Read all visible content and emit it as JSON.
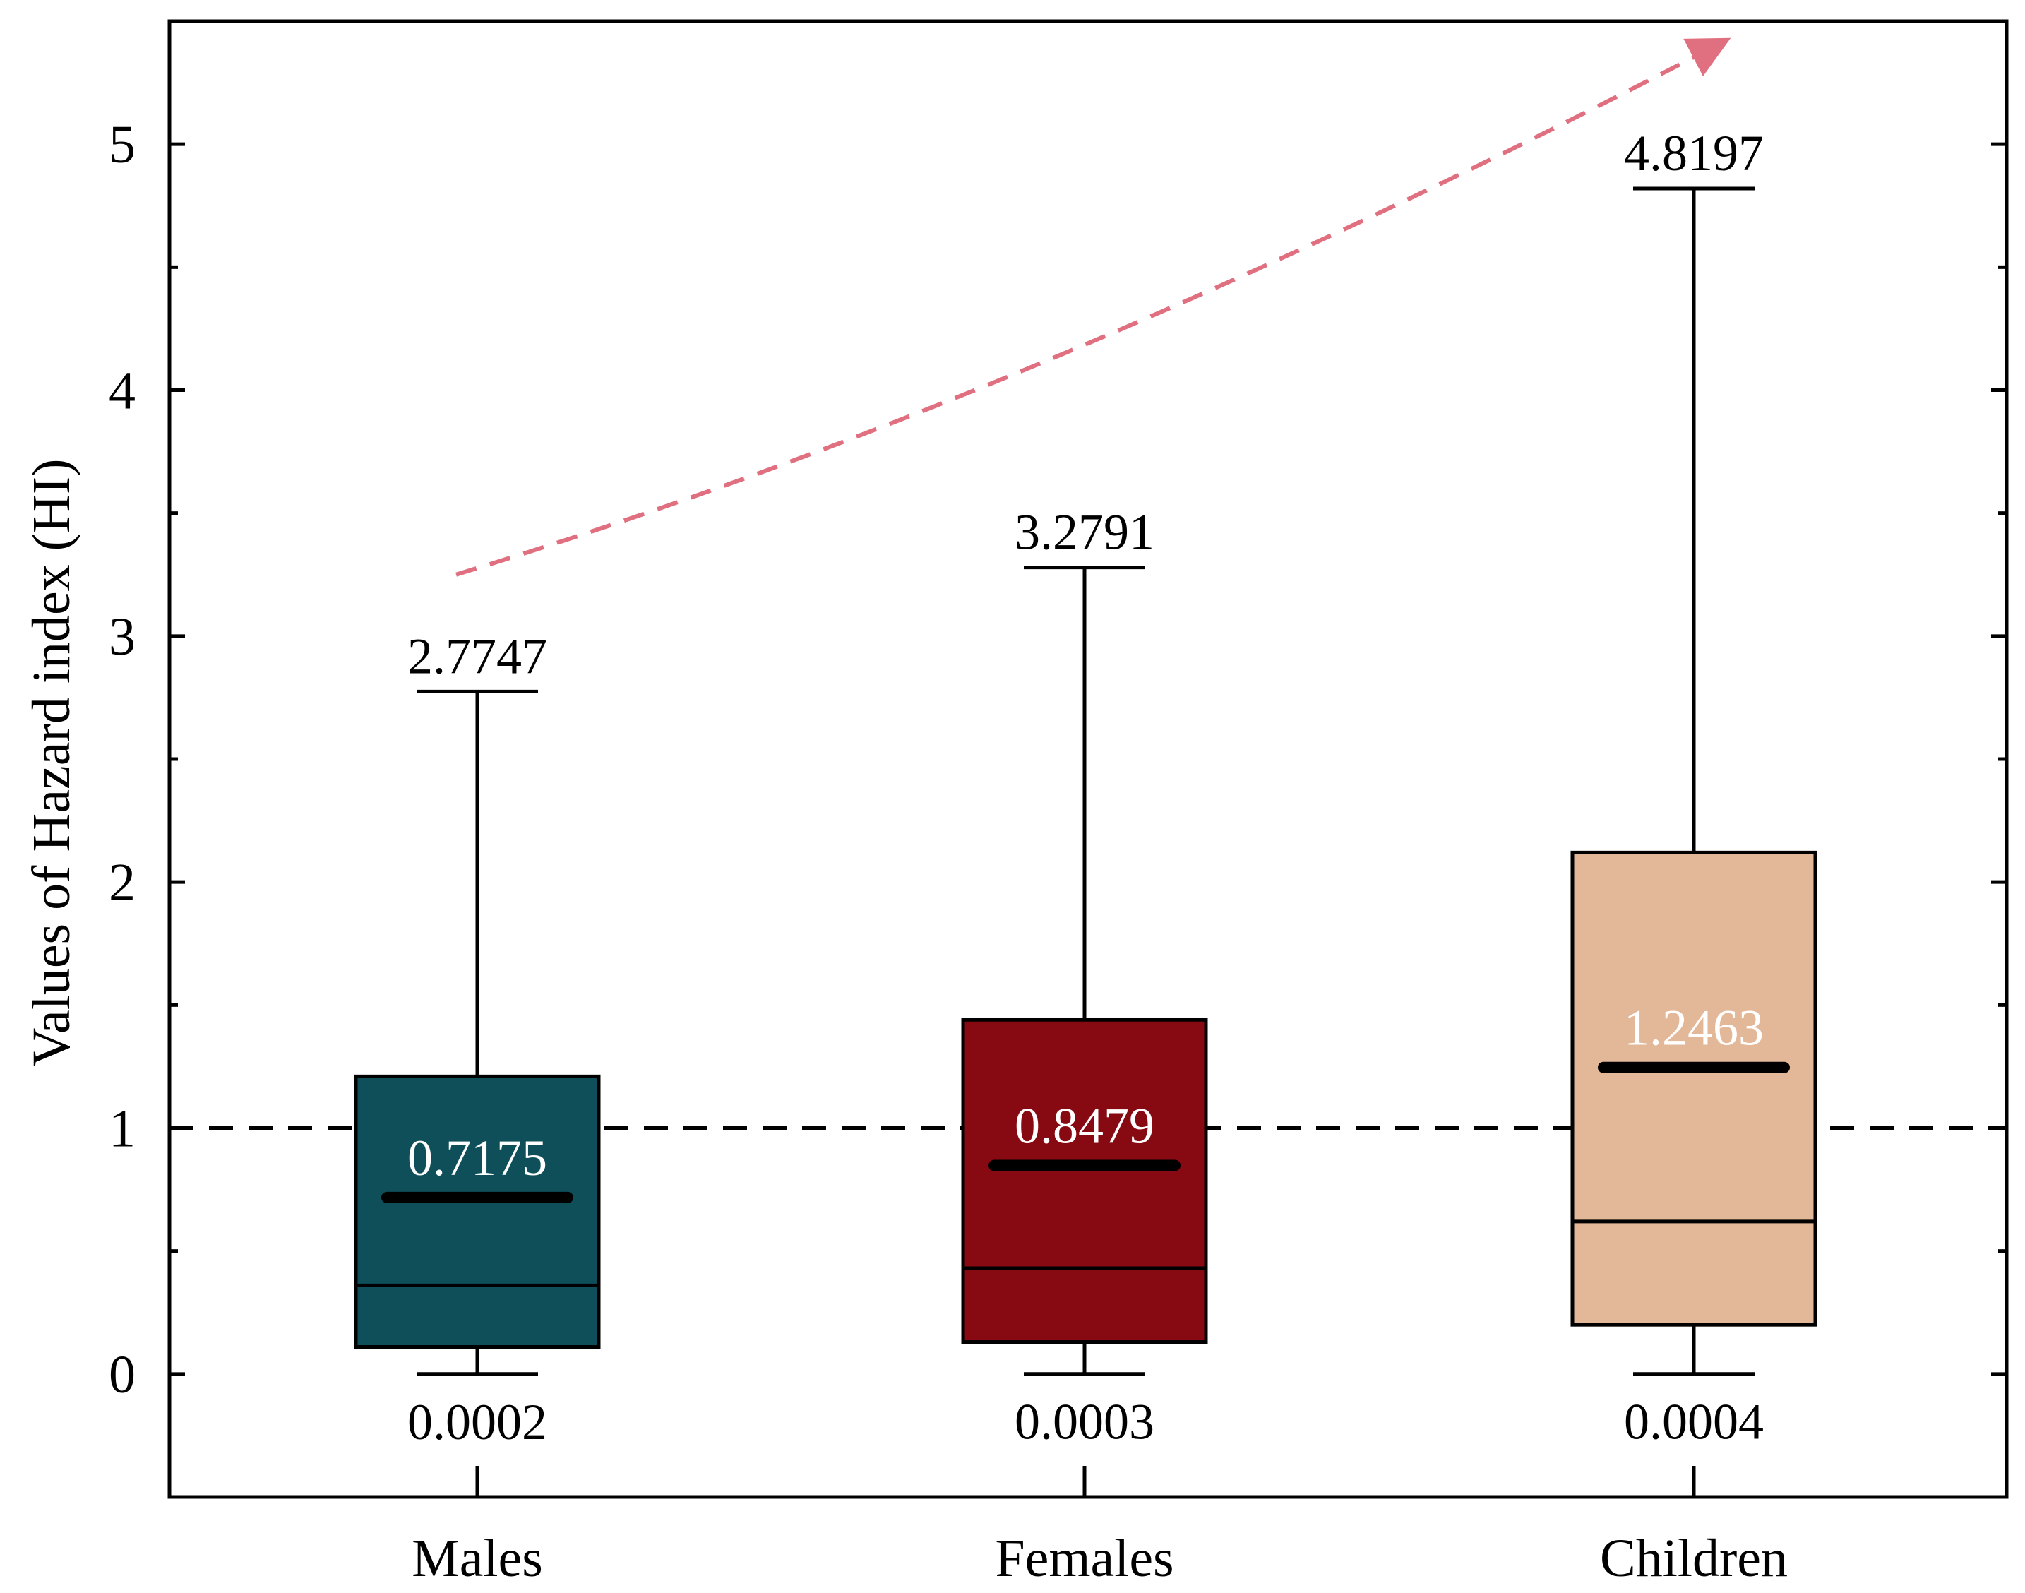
{
  "chart_data": {
    "type": "box",
    "ylabel": "Values of  Hazard index (HI)",
    "ylim": [
      -0.5,
      5.5
    ],
    "yticks": [
      0,
      1,
      2,
      3,
      4,
      5
    ],
    "ytick_labels": [
      "0",
      "1",
      "2",
      "3",
      "4",
      "5"
    ],
    "threshold": 1,
    "categories": [
      "Males",
      "Females",
      "Children"
    ],
    "boxes": [
      {
        "name": "Males",
        "min": 0.0002,
        "q1": 0.11,
        "median": 0.36,
        "q3": 1.21,
        "max": 2.7747,
        "mean": 0.7175,
        "min_label": "0.0002",
        "max_label": "2.7747",
        "mean_label": "0.7175",
        "color": "#0f4f5a"
      },
      {
        "name": "Females",
        "min": 0.0003,
        "q1": 0.13,
        "median": 0.43,
        "q3": 1.44,
        "max": 3.2791,
        "mean": 0.8479,
        "min_label": "0.0003",
        "max_label": "3.2791",
        "mean_label": "0.8479",
        "color": "#870a12"
      },
      {
        "name": "Children",
        "min": 0.0004,
        "q1": 0.2,
        "median": 0.62,
        "q3": 2.12,
        "max": 4.8197,
        "mean": 1.2463,
        "min_label": "0.0004",
        "max_label": "4.8197",
        "mean_label": "1.2463",
        "color": "#e2b898"
      }
    ],
    "trend_arrow": {
      "color": "#e07080",
      "from_y": 3.25,
      "to_y": 5.4
    }
  }
}
